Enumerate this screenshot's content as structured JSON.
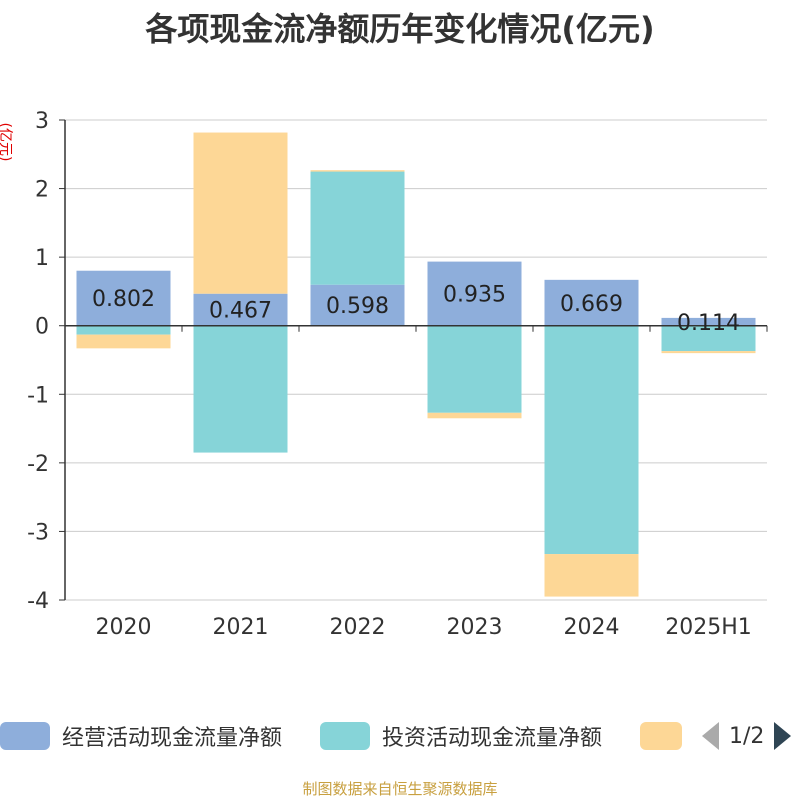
{
  "chart_data": {
    "type": "bar",
    "stacked": true,
    "title": "各项现金流净额历年变化情况(亿元)",
    "ylabel": "(亿元)",
    "categories": [
      "2020",
      "2021",
      "2022",
      "2023",
      "2024",
      "2025H1"
    ],
    "ylim": [
      -4,
      3
    ],
    "yticks": [
      3,
      2,
      1,
      0,
      -1,
      -2,
      -3,
      -4
    ],
    "grid": true,
    "series": [
      {
        "name": "经营活动现金流量净额",
        "color": "#8eaedb",
        "values": [
          0.802,
          0.467,
          0.598,
          0.935,
          0.669,
          0.114
        ],
        "labels": [
          "0.802",
          "0.467",
          "0.598",
          "0.935",
          "0.669",
          "0.114"
        ]
      },
      {
        "name": "投资活动现金流量净额",
        "color": "#86d4d8",
        "values": [
          -0.13,
          -1.85,
          1.65,
          -1.27,
          -3.33,
          -0.37
        ]
      },
      {
        "name": "",
        "color": "#fdd796",
        "values": [
          -0.2,
          2.35,
          0.02,
          -0.08,
          -0.62,
          -0.03
        ]
      }
    ],
    "legend_position": "bottom"
  },
  "legend": {
    "items": [
      {
        "label": "经营活动现金流量净额",
        "color": "#8eaedb"
      },
      {
        "label": "投资活动现金流量净额",
        "color": "#86d4d8"
      },
      {
        "label": "",
        "color": "#fdd796"
      }
    ],
    "pager_text": "1/2"
  },
  "source_text": "制图数据来自恒生聚源数据库"
}
